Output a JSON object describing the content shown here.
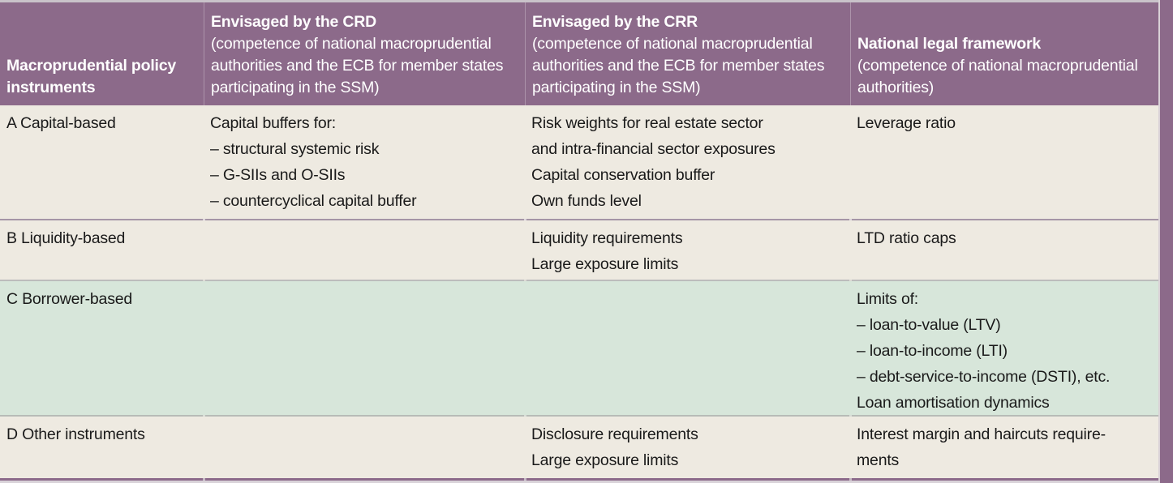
{
  "colors": {
    "header_bg": "#8c6a8a",
    "body_bg": "#eeeae1",
    "highlight_bg": "#d7e6da",
    "header_text": "#ffffff",
    "body_text": "#1a1a1a",
    "accent_bar": "#8c6a8a"
  },
  "header": {
    "col1": {
      "title": [
        "Macroprudential policy",
        "instruments"
      ]
    },
    "col2": {
      "title": "Envisaged by the CRD",
      "subtitle": [
        "(competence of national macroprudential",
        "authorities and the ECB for member states",
        "participating in the SSM)"
      ]
    },
    "col3": {
      "title": "Envisaged by the CRR",
      "subtitle": [
        "(competence of national macroprudential",
        "authorities and the ECB for member states",
        "participating in the SSM)"
      ]
    },
    "col4": {
      "title": "National legal framework",
      "subtitle": [
        "(competence of national macroprudential",
        "authorities)"
      ]
    }
  },
  "rows": [
    {
      "name": "A Capital-based",
      "highlight": false,
      "crd": [
        "Capital buffers for:",
        "– structural systemic risk",
        "– G-SIIs and O-SIIs",
        "– countercyclical capital buffer"
      ],
      "crr": [
        "Risk weights for real estate sector",
        "and intra-financial sector exposures",
        "Capital conservation buffer",
        "Own funds level"
      ],
      "national": [
        "Leverage ratio"
      ]
    },
    {
      "name": "B Liquidity-based",
      "highlight": false,
      "crd": [],
      "crr": [
        "Liquidity requirements",
        "Large exposure limits"
      ],
      "national": [
        "LTD ratio caps"
      ]
    },
    {
      "name": "C Borrower-based",
      "highlight": true,
      "crd": [],
      "crr": [],
      "national": [
        "Limits of:",
        "– loan-to-value (LTV)",
        "– loan-to-income (LTI)",
        "– debt-service-to-income (DSTI), etc.",
        "Loan amortisation dynamics"
      ]
    },
    {
      "name": "D Other instruments",
      "highlight": false,
      "crd": [],
      "crr": [
        "Disclosure requirements",
        "Large exposure limits"
      ],
      "national": [
        "Interest margin and haircuts require-",
        "ments"
      ]
    }
  ]
}
